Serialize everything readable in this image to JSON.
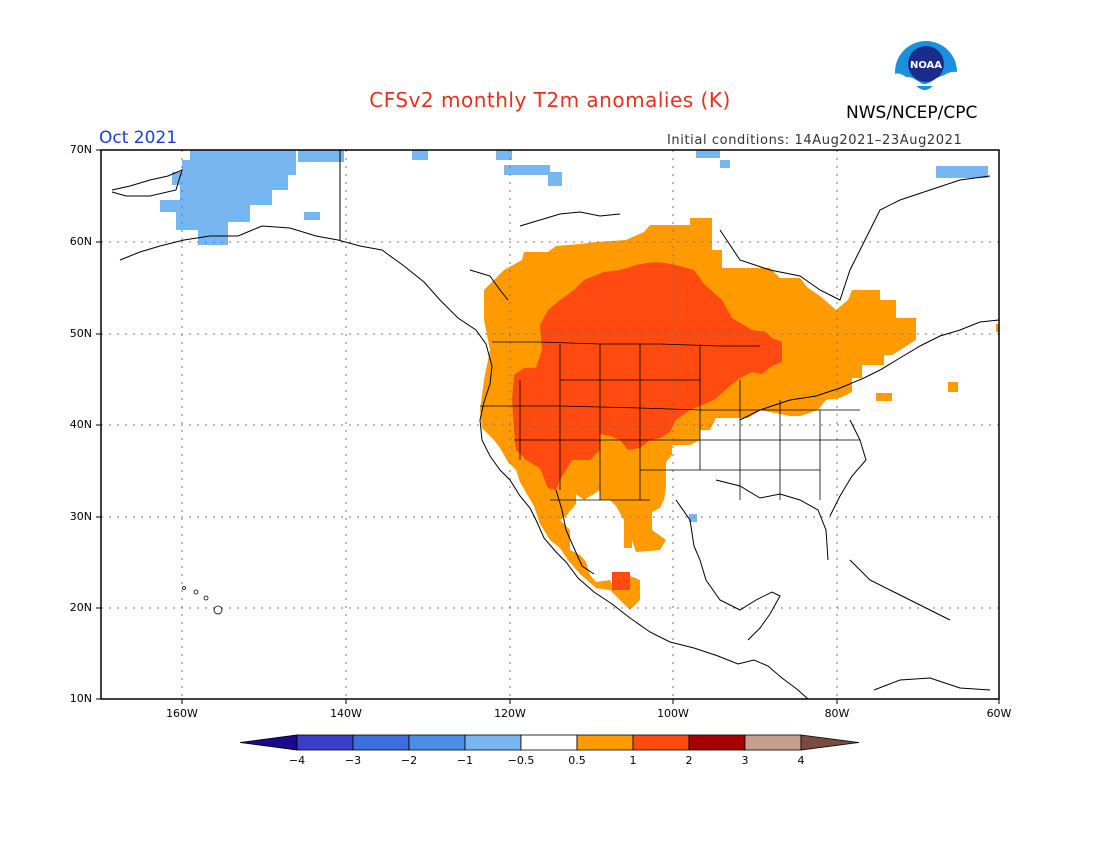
{
  "title": "CFSv2 monthly T2m anomalies (K)",
  "agency": "NWS/NCEP/CPC",
  "logo_text": "NOAA",
  "period": "Oct 2021",
  "initial_conditions": "Initial conditions: 14Aug2021–23Aug2021",
  "lat_labels": [
    "70N",
    "60N",
    "50N",
    "40N",
    "30N",
    "20N",
    "10N"
  ],
  "lon_labels": [
    "160W",
    "140W",
    "120W",
    "100W",
    "80W",
    "60W"
  ],
  "colorbar": {
    "labels": [
      "−4",
      "−3",
      "−2",
      "−1",
      "−0.5",
      "0.5",
      "1",
      "2",
      "3",
      "4"
    ],
    "colors": [
      "#1a0a8c",
      "#3a3ec8",
      "#3c6fdd",
      "#4a8fe6",
      "#78b6f2",
      "#ffffff",
      "#ff9a00",
      "#ff4a10",
      "#a80000",
      "#c89e8e",
      "#7a4a3e"
    ]
  },
  "legend_colors": {
    "cold": "#78b6f2",
    "warm": "#ff9a00",
    "hot": "#ff4a10"
  }
}
